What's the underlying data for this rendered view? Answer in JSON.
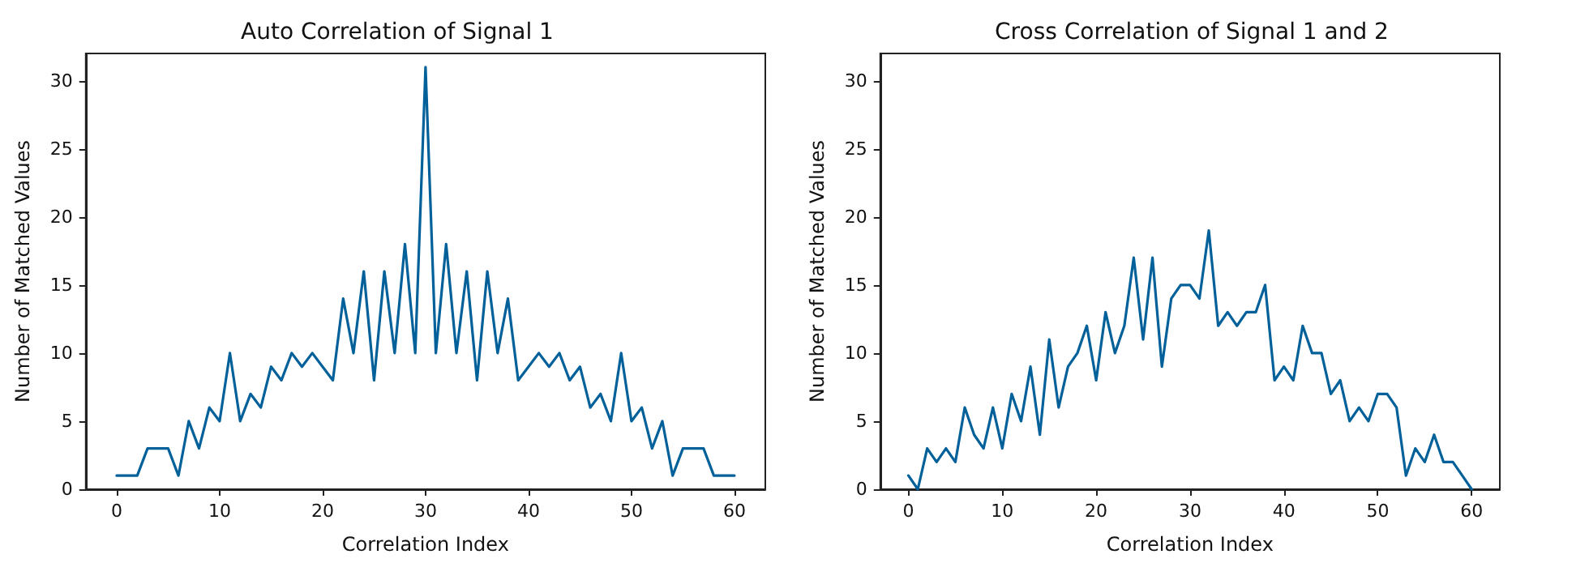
{
  "chart_data": [
    {
      "type": "line",
      "title": "Auto Correlation of Signal 1",
      "xlabel": "Correlation Index",
      "ylabel": "Number of Matched Values",
      "x": [
        0,
        1,
        2,
        3,
        4,
        5,
        6,
        7,
        8,
        9,
        10,
        11,
        12,
        13,
        14,
        15,
        16,
        17,
        18,
        19,
        20,
        21,
        22,
        23,
        24,
        25,
        26,
        27,
        28,
        29,
        30,
        31,
        32,
        33,
        34,
        35,
        36,
        37,
        38,
        39,
        40,
        41,
        42,
        43,
        44,
        45,
        46,
        47,
        48,
        49,
        50,
        51,
        52,
        53,
        54,
        55,
        56,
        57,
        58,
        59,
        60
      ],
      "series": [
        {
          "color": "#00609a",
          "values": [
            1,
            1,
            1,
            3,
            3,
            3,
            1,
            5,
            3,
            6,
            5,
            10,
            5,
            7,
            6,
            9,
            8,
            10,
            9,
            10,
            9,
            8,
            14,
            10,
            16,
            8,
            16,
            10,
            18,
            10,
            31,
            10,
            18,
            10,
            16,
            8,
            16,
            10,
            14,
            8,
            9,
            10,
            9,
            10,
            8,
            9,
            6,
            7,
            5,
            10,
            5,
            6,
            3,
            5,
            1,
            3,
            3,
            3,
            1,
            1,
            1
          ]
        }
      ],
      "xlim": [
        -3,
        63
      ],
      "xticks": [
        0,
        10,
        20,
        30,
        40,
        50,
        60
      ],
      "ylim": [
        0,
        32
      ],
      "yticks": [
        0,
        5,
        10,
        15,
        20,
        25,
        30
      ],
      "grid": false,
      "marker": "none",
      "line_style": "solid"
    },
    {
      "type": "line",
      "title": "Cross Correlation of Signal 1 and 2",
      "xlabel": "Correlation Index",
      "ylabel": "Number of Matched Values",
      "x": [
        0,
        1,
        2,
        3,
        4,
        5,
        6,
        7,
        8,
        9,
        10,
        11,
        12,
        13,
        14,
        15,
        16,
        17,
        18,
        19,
        20,
        21,
        22,
        23,
        24,
        25,
        26,
        27,
        28,
        29,
        30,
        31,
        32,
        33,
        34,
        35,
        36,
        37,
        38,
        39,
        40,
        41,
        42,
        43,
        44,
        45,
        46,
        47,
        48,
        49,
        50,
        51,
        52,
        53,
        54,
        55,
        56,
        57,
        58,
        59,
        60
      ],
      "series": [
        {
          "color": "#00609a",
          "values": [
            1,
            0,
            3,
            2,
            3,
            2,
            6,
            4,
            3,
            6,
            3,
            7,
            5,
            9,
            4,
            11,
            6,
            9,
            10,
            12,
            8,
            13,
            10,
            12,
            17,
            11,
            17,
            9,
            14,
            15,
            15,
            14,
            19,
            12,
            13,
            12,
            13,
            13,
            15,
            8,
            9,
            8,
            12,
            10,
            10,
            7,
            8,
            5,
            6,
            5,
            7,
            7,
            6,
            1,
            3,
            2,
            4,
            2,
            2,
            1,
            0
          ]
        }
      ],
      "xlim": [
        -3,
        63
      ],
      "xticks": [
        0,
        10,
        20,
        30,
        40,
        50,
        60
      ],
      "ylim": [
        0,
        32
      ],
      "yticks": [
        0,
        5,
        10,
        15,
        20,
        25,
        30
      ],
      "grid": false,
      "marker": "none",
      "line_style": "solid"
    }
  ]
}
